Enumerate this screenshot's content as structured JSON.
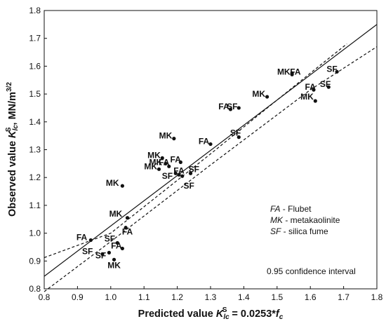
{
  "chart_data": {
    "type": "scatter",
    "x_axis": {
      "min": 0.8,
      "max": 1.8,
      "ticks": [
        "0.8",
        "0.9",
        "1.0",
        "1.1",
        "1.2",
        "1.3",
        "1.4",
        "1.5",
        "1.6",
        "1.7",
        "1.8"
      ]
    },
    "y_axis": {
      "min": 0.8,
      "max": 1.8,
      "ticks": [
        "0.8",
        "0.9",
        "1.0",
        "1.1",
        "1.2",
        "1.3",
        "1.4",
        "1.5",
        "1.6",
        "1.7",
        "1.8"
      ]
    },
    "xlabel": {
      "prefix": "Predicted value ",
      "K": "K",
      "sub": "lc",
      "sup": "S",
      "suffix": " = 0.0253*",
      "f": "f",
      "fsub": "c"
    },
    "ylabel": {
      "prefix": "Observed value ",
      "K": "K",
      "sub": "lc",
      "sup": "S",
      "suffix": ", MN/m",
      "unit_sup": "3/2"
    },
    "grid": false,
    "fit_line": {
      "points": [
        [
          0.8,
          0.845
        ],
        [
          1.8,
          1.75
        ]
      ]
    },
    "confidence_upper": {
      "points": [
        [
          0.8,
          0.912
        ],
        [
          1.0,
          1.0
        ],
        [
          1.3,
          1.285
        ],
        [
          1.6,
          1.575
        ],
        [
          1.71,
          1.68
        ]
      ]
    },
    "confidence_lower": {
      "points": [
        [
          0.8,
          0.79
        ],
        [
          1.0,
          0.97
        ],
        [
          1.3,
          1.245
        ],
        [
          1.6,
          1.515
        ],
        [
          1.8,
          1.67
        ]
      ]
    },
    "points": [
      {
        "x": 0.94,
        "y": 0.975,
        "label": "FA",
        "lx": 0.913,
        "ly": 0.985
      },
      {
        "x": 0.975,
        "y": 0.925,
        "label": "SF",
        "lx": 0.93,
        "ly": 0.935
      },
      {
        "x": 0.995,
        "y": 0.93,
        "label": "SF",
        "lx": 0.97,
        "ly": 0.92
      },
      {
        "x": 1.02,
        "y": 0.965,
        "label": "SF",
        "lx": 0.997,
        "ly": 0.98
      },
      {
        "x": 1.035,
        "y": 0.945,
        "label": "FA",
        "lx": 1.017,
        "ly": 0.955
      },
      {
        "x": 1.01,
        "y": 0.905,
        "label": "MK",
        "lx": 1.01,
        "ly": 0.885
      },
      {
        "x": 1.045,
        "y": 1.02,
        "label": "FA",
        "lx": 1.05,
        "ly": 1.005
      },
      {
        "x": 1.05,
        "y": 1.055,
        "label": "MK",
        "lx": 1.015,
        "ly": 1.07
      },
      {
        "x": 1.035,
        "y": 1.17,
        "label": "MK",
        "lx": 1.005,
        "ly": 1.18
      },
      {
        "x": 1.145,
        "y": 1.23,
        "label": "MK",
        "lx": 1.12,
        "ly": 1.24
      },
      {
        "x": 1.155,
        "y": 1.27,
        "label": "MK",
        "lx": 1.13,
        "ly": 1.28
      },
      {
        "x": 1.165,
        "y": 1.25,
        "label": "MK",
        "lx": 1.135,
        "ly": 1.255
      },
      {
        "x": 1.175,
        "y": 1.24,
        "label": "FA",
        "lx": 1.16,
        "ly": 1.255
      },
      {
        "x": 1.19,
        "y": 1.34,
        "label": "MK",
        "lx": 1.165,
        "ly": 1.35
      },
      {
        "x": 1.21,
        "y": 1.255,
        "label": "FA",
        "lx": 1.195,
        "ly": 1.265
      },
      {
        "x": 1.205,
        "y": 1.21,
        "label": "FA",
        "lx": 1.205,
        "ly": 1.225
      },
      {
        "x": 1.195,
        "y": 1.215,
        "label": "SF",
        "lx": 1.17,
        "ly": 1.205
      },
      {
        "x": 1.215,
        "y": 1.205,
        "label": "SF",
        "lx": 1.235,
        "ly": 1.17
      },
      {
        "x": 1.24,
        "y": 1.215,
        "label": "SF",
        "lx": 1.25,
        "ly": 1.23
      },
      {
        "x": 1.3,
        "y": 1.32,
        "label": "FA",
        "lx": 1.28,
        "ly": 1.33
      },
      {
        "x": 1.36,
        "y": 1.445,
        "label": "FA",
        "lx": 1.34,
        "ly": 1.455
      },
      {
        "x": 1.385,
        "y": 1.45,
        "label": "SF",
        "lx": 1.365,
        "ly": 1.455
      },
      {
        "x": 1.385,
        "y": 1.345,
        "label": "SF",
        "lx": 1.375,
        "ly": 1.36
      },
      {
        "x": 1.47,
        "y": 1.49,
        "label": "MK",
        "lx": 1.445,
        "ly": 1.5
      },
      {
        "x": 1.545,
        "y": 1.575,
        "label": "MK",
        "lx": 1.52,
        "ly": 1.58
      },
      {
        "x": 1.545,
        "y": 1.57,
        "label": "FA",
        "lx": 1.555,
        "ly": 1.58
      },
      {
        "x": 1.61,
        "y": 1.515,
        "label": "FA",
        "lx": 1.6,
        "ly": 1.525
      },
      {
        "x": 1.615,
        "y": 1.475,
        "label": "MK",
        "lx": 1.59,
        "ly": 1.49
      },
      {
        "x": 1.655,
        "y": 1.525,
        "label": "SF",
        "lx": 1.645,
        "ly": 1.535
      },
      {
        "x": 1.68,
        "y": 1.58,
        "label": "SF",
        "lx": 1.665,
        "ly": 1.59
      }
    ],
    "legend": [
      {
        "abbr": "FA",
        "desc": " - Flubet"
      },
      {
        "abbr": "MK",
        "desc": " - metakaolinite"
      },
      {
        "abbr": "SF",
        "desc": " - silica fume"
      }
    ],
    "ci_note": "0.95 confidence interval"
  }
}
